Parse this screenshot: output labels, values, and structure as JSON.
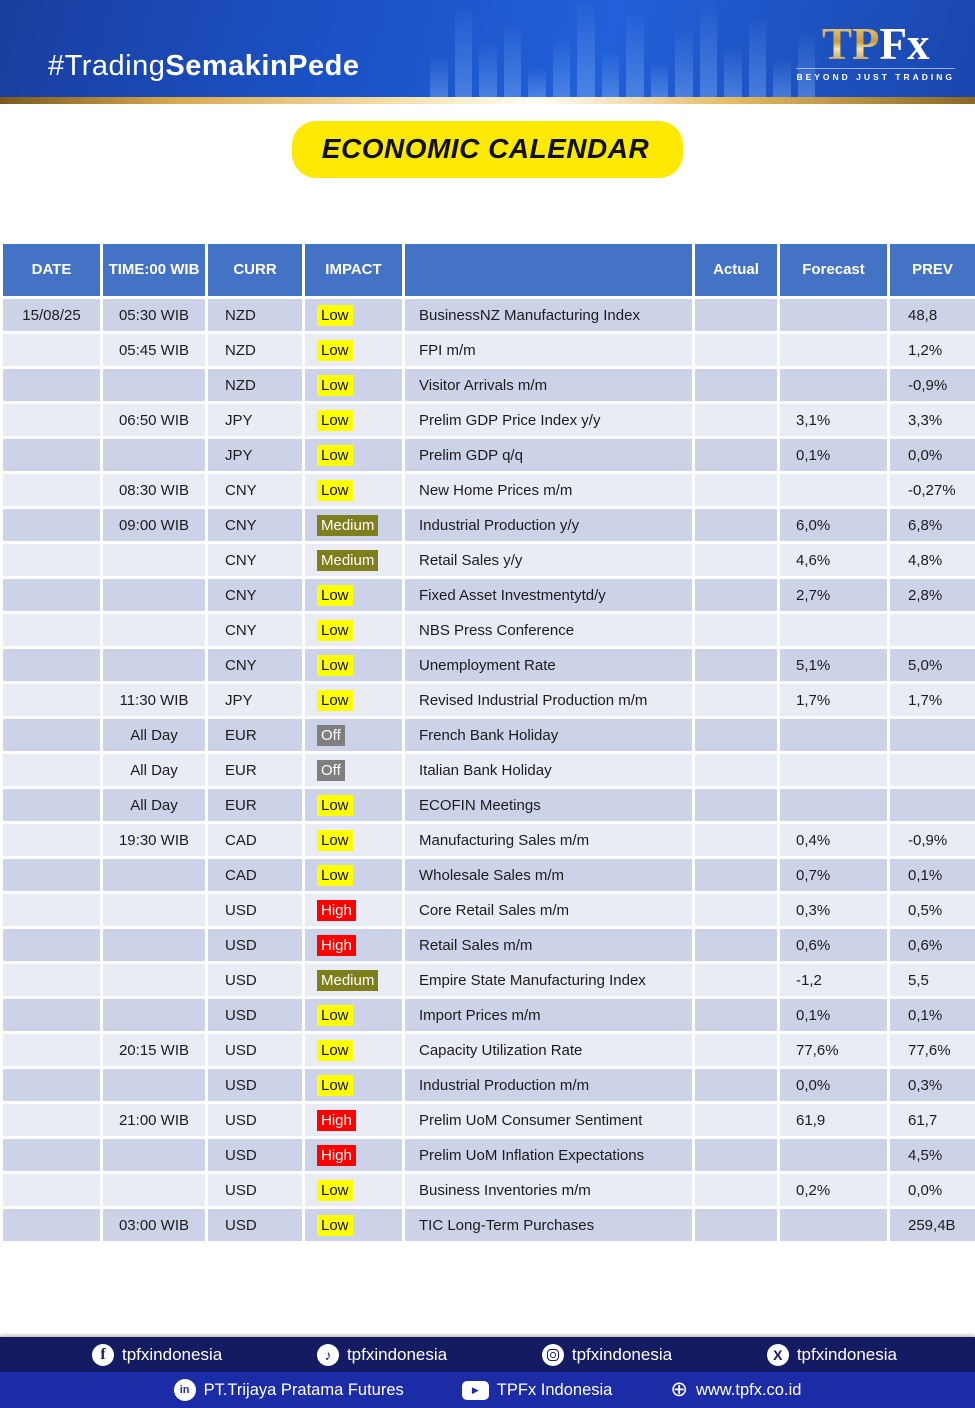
{
  "theme": {
    "header_bg": "#4472c4",
    "row_odd": "#ccd3e8",
    "row_even": "#e9ebf5",
    "accent_yellow": "#fde903",
    "gold": "#d8ab52",
    "footer_top_bg": "#141b63",
    "footer_bottom_bg": "#1c2ba6"
  },
  "header": {
    "hashtag_light": "#Trading",
    "hashtag_bold": "SemakinPede",
    "logo_tp": "TP",
    "logo_fx": "Fx",
    "logo_tagline": "BEYOND JUST TRADING"
  },
  "title_badge": "ECONOMIC CALENDAR",
  "table": {
    "columns": [
      "DATE",
      "TIME:00 WIB",
      "CURR",
      "IMPACT",
      "",
      "Actual",
      "Forecast",
      "PREV"
    ],
    "impact_colors": {
      "Low": {
        "bg": "#ffff00",
        "fg": "#111111"
      },
      "Medium": {
        "bg": "#7e7e1d",
        "fg": "#ffffff"
      },
      "High": {
        "bg": "#fe0000",
        "fg": "#ffffff"
      },
      "Off": {
        "bg": "#7f7f7f",
        "fg": "#ffffff"
      }
    },
    "rows": [
      {
        "date": "15/08/25",
        "time": "05:30 WIB",
        "curr": "NZD",
        "impact": "Low",
        "event": "BusinessNZ Manufacturing Index",
        "actual": "",
        "forecast": "",
        "prev": "48,8"
      },
      {
        "date": "",
        "time": "05:45 WIB",
        "curr": "NZD",
        "impact": "Low",
        "event": "FPI m/m",
        "actual": "",
        "forecast": "",
        "prev": "1,2%"
      },
      {
        "date": "",
        "time": "",
        "curr": "NZD",
        "impact": "Low",
        "event": "Visitor Arrivals m/m",
        "actual": "",
        "forecast": "",
        "prev": "-0,9%"
      },
      {
        "date": "",
        "time": "06:50 WIB",
        "curr": "JPY",
        "impact": "Low",
        "event": "Prelim GDP Price Index y/y",
        "actual": "",
        "forecast": "3,1%",
        "prev": "3,3%"
      },
      {
        "date": "",
        "time": "",
        "curr": "JPY",
        "impact": "Low",
        "event": "Prelim GDP q/q",
        "actual": "",
        "forecast": "0,1%",
        "prev": "0,0%"
      },
      {
        "date": "",
        "time": "08:30 WIB",
        "curr": "CNY",
        "impact": "Low",
        "event": "New Home Prices m/m",
        "actual": "",
        "forecast": "",
        "prev": "-0,27%"
      },
      {
        "date": "",
        "time": "09:00 WIB",
        "curr": "CNY",
        "impact": "Medium",
        "event": "Industrial Production y/y",
        "actual": "",
        "forecast": "6,0%",
        "prev": "6,8%"
      },
      {
        "date": "",
        "time": "",
        "curr": "CNY",
        "impact": "Medium",
        "event": "Retail Sales y/y",
        "actual": "",
        "forecast": "4,6%",
        "prev": "4,8%"
      },
      {
        "date": "",
        "time": "",
        "curr": "CNY",
        "impact": "Low",
        "event": "Fixed Asset Investmentytd/y",
        "actual": "",
        "forecast": "2,7%",
        "prev": "2,8%"
      },
      {
        "date": "",
        "time": "",
        "curr": "CNY",
        "impact": "Low",
        "event": "NBS Press Conference",
        "actual": "",
        "forecast": "",
        "prev": ""
      },
      {
        "date": "",
        "time": "",
        "curr": "CNY",
        "impact": "Low",
        "event": "Unemployment Rate",
        "actual": "",
        "forecast": "5,1%",
        "prev": "5,0%"
      },
      {
        "date": "",
        "time": "11:30 WIB",
        "curr": "JPY",
        "impact": "Low",
        "event": "Revised Industrial Production m/m",
        "actual": "",
        "forecast": "1,7%",
        "prev": "1,7%"
      },
      {
        "date": "",
        "time": "All Day",
        "curr": "EUR",
        "impact": "Off",
        "event": "French Bank Holiday",
        "actual": "",
        "forecast": "",
        "prev": ""
      },
      {
        "date": "",
        "time": "All Day",
        "curr": "EUR",
        "impact": "Off",
        "event": "Italian Bank Holiday",
        "actual": "",
        "forecast": "",
        "prev": ""
      },
      {
        "date": "",
        "time": "All Day",
        "curr": "EUR",
        "impact": "Low",
        "event": "ECOFIN Meetings",
        "actual": "",
        "forecast": "",
        "prev": ""
      },
      {
        "date": "",
        "time": "19:30 WIB",
        "curr": "CAD",
        "impact": "Low",
        "event": "Manufacturing Sales m/m",
        "actual": "",
        "forecast": "0,4%",
        "prev": "-0,9%"
      },
      {
        "date": "",
        "time": "",
        "curr": "CAD",
        "impact": "Low",
        "event": "Wholesale Sales m/m",
        "actual": "",
        "forecast": "0,7%",
        "prev": "0,1%"
      },
      {
        "date": "",
        "time": "",
        "curr": "USD",
        "impact": "High",
        "event": "Core Retail Sales m/m",
        "actual": "",
        "forecast": "0,3%",
        "prev": "0,5%"
      },
      {
        "date": "",
        "time": "",
        "curr": "USD",
        "impact": "High",
        "event": "Retail Sales m/m",
        "actual": "",
        "forecast": "0,6%",
        "prev": "0,6%"
      },
      {
        "date": "",
        "time": "",
        "curr": "USD",
        "impact": "Medium",
        "event": "Empire State Manufacturing Index",
        "actual": "",
        "forecast": "-1,2",
        "prev": "5,5"
      },
      {
        "date": "",
        "time": "",
        "curr": "USD",
        "impact": "Low",
        "event": "Import Prices m/m",
        "actual": "",
        "forecast": "0,1%",
        "prev": "0,1%"
      },
      {
        "date": "",
        "time": "20:15 WIB",
        "curr": "USD",
        "impact": "Low",
        "event": "Capacity Utilization Rate",
        "actual": "",
        "forecast": "77,6%",
        "prev": "77,6%"
      },
      {
        "date": "",
        "time": "",
        "curr": "USD",
        "impact": "Low",
        "event": "Industrial Production m/m",
        "actual": "",
        "forecast": "0,0%",
        "prev": "0,3%"
      },
      {
        "date": "",
        "time": "21:00 WIB",
        "curr": "USD",
        "impact": "High",
        "event": "Prelim UoM Consumer Sentiment",
        "actual": "",
        "forecast": "61,9",
        "prev": "61,7"
      },
      {
        "date": "",
        "time": "",
        "curr": "USD",
        "impact": "High",
        "event": "Prelim UoM Inflation Expectations",
        "actual": "",
        "forecast": "",
        "prev": "4,5%"
      },
      {
        "date": "",
        "time": "",
        "curr": "USD",
        "impact": "Low",
        "event": "Business Inventories m/m",
        "actual": "",
        "forecast": "0,2%",
        "prev": "0,0%"
      },
      {
        "date": "",
        "time": "03:00 WIB",
        "curr": "USD",
        "impact": "Low",
        "event": "TIC Long-Term Purchases",
        "actual": "",
        "forecast": "",
        "prev": "259,4B"
      }
    ]
  },
  "footer": {
    "social": [
      {
        "icon": "facebook-icon",
        "label": "tpfxindonesia"
      },
      {
        "icon": "tiktok-icon",
        "label": "tpfxindonesia"
      },
      {
        "icon": "instagram-icon",
        "label": "tpfxindonesia"
      },
      {
        "icon": "x-icon",
        "label": "tpfxindonesia"
      }
    ],
    "links": [
      {
        "icon": "linkedin-icon",
        "label": "PT.Trijaya Pratama Futures"
      },
      {
        "icon": "youtube-icon",
        "label": "TPFx Indonesia"
      },
      {
        "icon": "globe-icon",
        "label": "www.tpfx.co.id"
      }
    ]
  }
}
